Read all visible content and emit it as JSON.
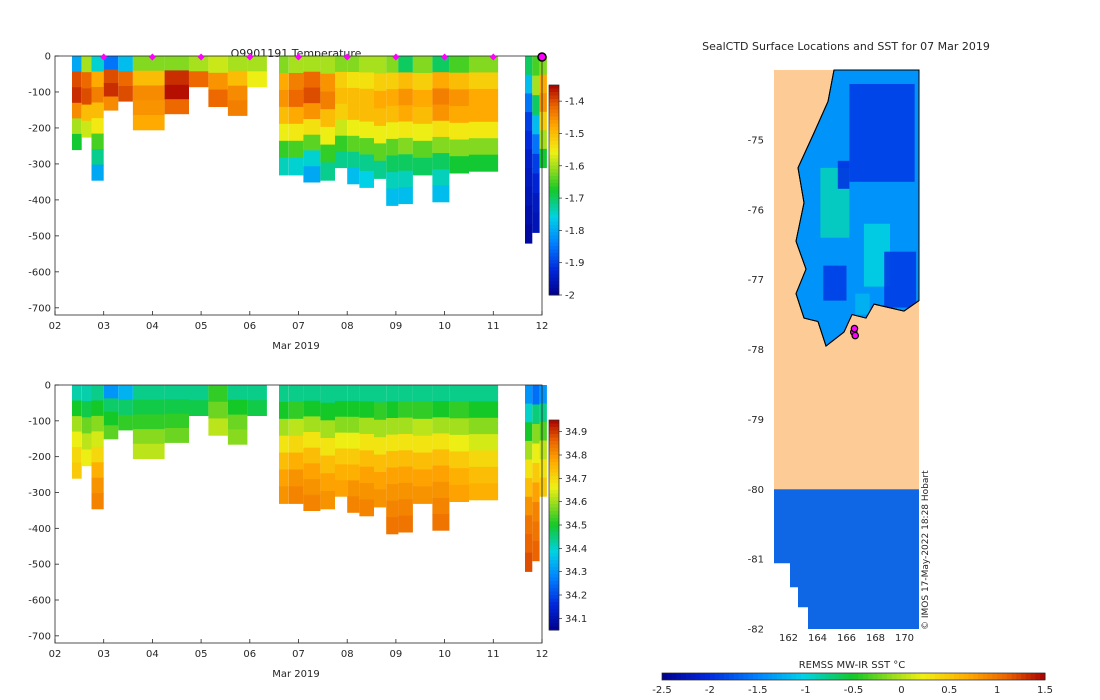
{
  "chart_data": [
    {
      "type": "heatmap",
      "title": "Q9901191  Temperature",
      "xlabel": "Mar 2019",
      "ylabel": "",
      "xlim": [
        2,
        12
      ],
      "ylim": [
        -720,
        0
      ],
      "xticks": [
        "02",
        "03",
        "04",
        "05",
        "06",
        "07",
        "08",
        "09",
        "10",
        "11",
        "12"
      ],
      "yticks": [
        "0",
        "-100",
        "-200",
        "-300",
        "-400",
        "-500",
        "-600",
        "-700"
      ],
      "colorbar": {
        "range": [
          -2.0,
          -1.35
        ],
        "ticks": [
          "-1.4",
          "-1.5",
          "-1.6",
          "-1.7",
          "-1.8",
          "-1.9",
          "-2"
        ]
      },
      "profile_markers_x": [
        3,
        4,
        5,
        6,
        7,
        8,
        9,
        10,
        11
      ],
      "last_position_marker_x": 12.0,
      "profiles": [
        {
          "x0": 2.35,
          "x1": 2.55,
          "depth": 260,
          "vals": [
            -1.8,
            -1.4,
            -1.38,
            -1.45,
            -1.6,
            -1.68
          ]
        },
        {
          "x0": 2.55,
          "x1": 2.75,
          "depth": 225,
          "vals": [
            -1.6,
            -1.42,
            -1.4,
            -1.5,
            -1.58
          ]
        },
        {
          "x0": 2.75,
          "x1": 3.0,
          "depth": 345,
          "vals": [
            -1.75,
            -1.48,
            -1.44,
            -1.5,
            -1.55,
            -1.65,
            -1.72,
            -1.8
          ]
        },
        {
          "x0": 3.0,
          "x1": 3.3,
          "depth": 150,
          "vals": [
            -1.85,
            -1.4,
            -1.38,
            -1.45
          ]
        },
        {
          "x0": 3.3,
          "x1": 3.6,
          "depth": 125,
          "vals": [
            -1.78,
            -1.42,
            -1.4
          ]
        },
        {
          "x0": 3.6,
          "x1": 4.25,
          "depth": 205,
          "vals": [
            -1.62,
            -1.5,
            -1.45,
            -1.46,
            -1.48
          ]
        },
        {
          "x0": 4.25,
          "x1": 4.75,
          "depth": 160,
          "vals": [
            -1.62,
            -1.38,
            -1.36,
            -1.42
          ]
        },
        {
          "x0": 4.75,
          "x1": 5.15,
          "depth": 85,
          "vals": [
            -1.6,
            -1.42
          ]
        },
        {
          "x0": 5.15,
          "x1": 5.55,
          "depth": 140,
          "vals": [
            -1.58,
            -1.46,
            -1.42
          ]
        },
        {
          "x0": 5.55,
          "x1": 5.95,
          "depth": 165,
          "vals": [
            -1.6,
            -1.5,
            -1.45,
            -1.44
          ]
        },
        {
          "x0": 5.95,
          "x1": 6.35,
          "depth": 85,
          "vals": [
            -1.6,
            -1.56
          ]
        },
        {
          "x0": 6.6,
          "x1": 6.8,
          "depth": 330,
          "vals": [
            -1.62,
            -1.48,
            -1.46,
            -1.5,
            -1.56,
            -1.66,
            -1.74
          ]
        },
        {
          "x0": 6.8,
          "x1": 7.1,
          "depth": 330,
          "vals": [
            -1.6,
            -1.44,
            -1.42,
            -1.48,
            -1.55,
            -1.65,
            -1.75
          ]
        },
        {
          "x0": 7.1,
          "x1": 7.45,
          "depth": 350,
          "vals": [
            -1.6,
            -1.42,
            -1.4,
            -1.46,
            -1.54,
            -1.64,
            -1.75,
            -1.8
          ]
        },
        {
          "x0": 7.45,
          "x1": 7.75,
          "depth": 345,
          "vals": [
            -1.6,
            -1.46,
            -1.44,
            -1.5,
            -1.56,
            -1.66,
            -1.72
          ]
        },
        {
          "x0": 7.75,
          "x1": 8.0,
          "depth": 310,
          "vals": [
            -1.62,
            -1.52,
            -1.5,
            -1.52,
            -1.58,
            -1.66,
            -1.72
          ]
        },
        {
          "x0": 8.0,
          "x1": 8.25,
          "depth": 355,
          "vals": [
            -1.62,
            -1.54,
            -1.5,
            -1.5,
            -1.56,
            -1.64,
            -1.72,
            -1.78
          ]
        },
        {
          "x0": 8.25,
          "x1": 8.55,
          "depth": 365,
          "vals": [
            -1.6,
            -1.54,
            -1.5,
            -1.5,
            -1.56,
            -1.64,
            -1.72,
            -1.76
          ]
        },
        {
          "x0": 8.55,
          "x1": 8.8,
          "depth": 340,
          "vals": [
            -1.6,
            -1.52,
            -1.48,
            -1.5,
            -1.56,
            -1.64,
            -1.72
          ]
        },
        {
          "x0": 8.8,
          "x1": 9.05,
          "depth": 415,
          "vals": [
            -1.62,
            -1.52,
            -1.48,
            -1.5,
            -1.56,
            -1.64,
            -1.7,
            -1.74,
            -1.78
          ]
        },
        {
          "x0": 9.05,
          "x1": 9.35,
          "depth": 410,
          "vals": [
            -1.7,
            -1.5,
            -1.46,
            -1.48,
            -1.55,
            -1.62,
            -1.7,
            -1.74,
            -1.78
          ]
        },
        {
          "x0": 9.35,
          "x1": 9.75,
          "depth": 330,
          "vals": [
            -1.62,
            -1.52,
            -1.48,
            -1.5,
            -1.56,
            -1.64,
            -1.7
          ]
        },
        {
          "x0": 9.75,
          "x1": 10.1,
          "depth": 405,
          "vals": [
            -1.7,
            -1.48,
            -1.44,
            -1.46,
            -1.54,
            -1.62,
            -1.7,
            -1.74,
            -1.78
          ]
        },
        {
          "x0": 10.1,
          "x1": 10.5,
          "depth": 325,
          "vals": [
            -1.65,
            -1.5,
            -1.46,
            -1.48,
            -1.55,
            -1.62,
            -1.68
          ]
        },
        {
          "x0": 10.5,
          "x1": 11.1,
          "depth": 320,
          "vals": [
            -1.62,
            -1.52,
            -1.48,
            -1.48,
            -1.55,
            -1.62,
            -1.68
          ]
        },
        {
          "x0": 11.65,
          "x1": 11.8,
          "depth": 520,
          "vals": [
            -1.7,
            -1.78,
            -1.85,
            -1.9,
            -1.92,
            -1.94,
            -1.95,
            -1.96,
            -1.97,
            -1.98
          ]
        },
        {
          "x0": 11.8,
          "x1": 11.95,
          "depth": 490,
          "vals": [
            -1.65,
            -1.6,
            -1.7,
            -1.78,
            -1.85,
            -1.9,
            -1.93,
            -1.95,
            -1.96
          ]
        },
        {
          "x0": 11.95,
          "x1": 12.1,
          "depth": 310,
          "vals": [
            -1.62,
            -1.48,
            -1.46,
            -1.52,
            -1.6,
            -1.68
          ]
        }
      ]
    },
    {
      "type": "heatmap",
      "title": "",
      "xlabel": "Mar 2019",
      "ylabel": "",
      "xlim": [
        2,
        12
      ],
      "ylim": [
        -720,
        0
      ],
      "xticks": [
        "02",
        "03",
        "04",
        "05",
        "06",
        "07",
        "08",
        "09",
        "10",
        "11",
        "12"
      ],
      "yticks": [
        "0",
        "-100",
        "-200",
        "-300",
        "-400",
        "-500",
        "-600",
        "-700"
      ],
      "colorbar": {
        "range": [
          34.05,
          34.95
        ],
        "ticks": [
          "34.9",
          "34.8",
          "34.7",
          "34.6",
          "34.5",
          "34.4",
          "34.3",
          "34.2",
          "34.1"
        ]
      },
      "profiles": [
        {
          "x0": 2.35,
          "x1": 2.55,
          "depth": 260,
          "vals": [
            34.42,
            34.5,
            34.6,
            34.66,
            34.7,
            34.72
          ]
        },
        {
          "x0": 2.55,
          "x1": 2.75,
          "depth": 225,
          "vals": [
            34.42,
            34.48,
            34.56,
            34.62,
            34.66
          ]
        },
        {
          "x0": 2.75,
          "x1": 3.0,
          "depth": 345,
          "vals": [
            34.44,
            34.5,
            34.58,
            34.64,
            34.7,
            34.76,
            34.8,
            34.82
          ]
        },
        {
          "x0": 3.0,
          "x1": 3.3,
          "depth": 150,
          "vals": [
            34.3,
            34.46,
            34.5,
            34.55
          ]
        },
        {
          "x0": 3.3,
          "x1": 3.6,
          "depth": 125,
          "vals": [
            34.34,
            34.46,
            34.52
          ]
        },
        {
          "x0": 3.6,
          "x1": 4.25,
          "depth": 205,
          "vals": [
            34.44,
            34.48,
            34.52,
            34.58,
            34.62
          ]
        },
        {
          "x0": 4.25,
          "x1": 4.75,
          "depth": 160,
          "vals": [
            34.44,
            34.48,
            34.52,
            34.56
          ]
        },
        {
          "x0": 4.75,
          "x1": 5.15,
          "depth": 85,
          "vals": [
            34.44,
            34.48
          ]
        },
        {
          "x0": 5.15,
          "x1": 5.55,
          "depth": 140,
          "vals": [
            34.52,
            34.56,
            34.62
          ]
        },
        {
          "x0": 5.55,
          "x1": 5.95,
          "depth": 165,
          "vals": [
            34.44,
            34.5,
            34.56,
            34.58
          ]
        },
        {
          "x0": 5.95,
          "x1": 6.35,
          "depth": 85,
          "vals": [
            34.44,
            34.48
          ]
        },
        {
          "x0": 6.6,
          "x1": 6.8,
          "depth": 330,
          "vals": [
            34.44,
            34.5,
            34.6,
            34.68,
            34.74,
            34.78,
            34.8
          ]
        },
        {
          "x0": 6.8,
          "x1": 7.1,
          "depth": 330,
          "vals": [
            34.44,
            34.52,
            34.62,
            34.7,
            34.76,
            34.8,
            34.82
          ]
        },
        {
          "x0": 7.1,
          "x1": 7.45,
          "depth": 350,
          "vals": [
            34.44,
            34.5,
            34.6,
            34.68,
            34.74,
            34.78,
            34.8,
            34.82
          ]
        },
        {
          "x0": 7.45,
          "x1": 7.75,
          "depth": 345,
          "vals": [
            34.44,
            34.5,
            34.6,
            34.68,
            34.74,
            34.78,
            34.8
          ]
        },
        {
          "x0": 7.75,
          "x1": 8.0,
          "depth": 310,
          "vals": [
            34.44,
            34.5,
            34.58,
            34.66,
            34.72,
            34.76,
            34.78
          ]
        },
        {
          "x0": 8.0,
          "x1": 8.25,
          "depth": 355,
          "vals": [
            34.44,
            34.5,
            34.58,
            34.66,
            34.72,
            34.76,
            34.8,
            34.82
          ]
        },
        {
          "x0": 8.25,
          "x1": 8.55,
          "depth": 365,
          "vals": [
            34.44,
            34.5,
            34.6,
            34.68,
            34.74,
            34.78,
            34.8,
            34.82
          ]
        },
        {
          "x0": 8.55,
          "x1": 8.8,
          "depth": 340,
          "vals": [
            34.44,
            34.52,
            34.6,
            34.68,
            34.74,
            34.78,
            34.8
          ]
        },
        {
          "x0": 8.8,
          "x1": 9.05,
          "depth": 415,
          "vals": [
            34.44,
            34.5,
            34.6,
            34.68,
            34.74,
            34.78,
            34.8,
            34.82,
            34.84
          ]
        },
        {
          "x0": 9.05,
          "x1": 9.35,
          "depth": 410,
          "vals": [
            34.44,
            34.52,
            34.6,
            34.68,
            34.74,
            34.78,
            34.8,
            34.82,
            34.84
          ]
        },
        {
          "x0": 9.35,
          "x1": 9.75,
          "depth": 330,
          "vals": [
            34.44,
            34.52,
            34.62,
            34.68,
            34.74,
            34.78,
            34.8
          ]
        },
        {
          "x0": 9.75,
          "x1": 10.1,
          "depth": 405,
          "vals": [
            34.44,
            34.5,
            34.6,
            34.68,
            34.74,
            34.78,
            34.8,
            34.82,
            34.84
          ]
        },
        {
          "x0": 10.1,
          "x1": 10.5,
          "depth": 325,
          "vals": [
            34.44,
            34.52,
            34.6,
            34.66,
            34.72,
            34.76,
            34.78
          ]
        },
        {
          "x0": 10.5,
          "x1": 11.1,
          "depth": 320,
          "vals": [
            34.44,
            34.5,
            34.58,
            34.64,
            34.7,
            34.74,
            34.76
          ]
        },
        {
          "x0": 11.65,
          "x1": 11.8,
          "depth": 520,
          "vals": [
            34.3,
            34.4,
            34.5,
            34.6,
            34.68,
            34.74,
            34.8,
            34.84,
            34.86,
            34.88
          ]
        },
        {
          "x0": 11.8,
          "x1": 11.95,
          "depth": 490,
          "vals": [
            34.25,
            34.45,
            34.58,
            34.66,
            34.72,
            34.78,
            34.82,
            34.84,
            34.86
          ]
        },
        {
          "x0": 11.95,
          "x1": 12.1,
          "depth": 310,
          "vals": [
            34.3,
            34.44,
            34.54,
            34.62,
            34.68,
            34.72
          ]
        }
      ]
    },
    {
      "type": "heatmap",
      "title": "SealCTD Surface Locations and SST for 07 Mar 2019",
      "xlabel": "",
      "ylabel": "",
      "xlim": [
        161,
        171
      ],
      "ylim": [
        -82,
        -74
      ],
      "xticks": [
        "162",
        "164",
        "166",
        "168",
        "170"
      ],
      "yticks": [
        "-75",
        "-76",
        "-77",
        "-78",
        "-79",
        "-80",
        "-81",
        "-82"
      ],
      "land_lat_bounds": [
        -80,
        -74
      ],
      "ice_shelf_edge_lat": -80.0,
      "colorbar": {
        "label": "REMSS MW-IR SST °C",
        "range": [
          -2.5,
          1.5
        ],
        "ticks": [
          "-2.5",
          "-2",
          "-1.5",
          "-1",
          "-0.5",
          "0",
          "0.5",
          "1",
          "1.5"
        ]
      },
      "seal_positions": [
        [
          166.5,
          -77.75
        ],
        [
          166.55,
          -77.7
        ],
        [
          166.6,
          -77.8
        ]
      ],
      "watermark": "© IMOS 17-May-2022 18:28 Hobart"
    }
  ]
}
